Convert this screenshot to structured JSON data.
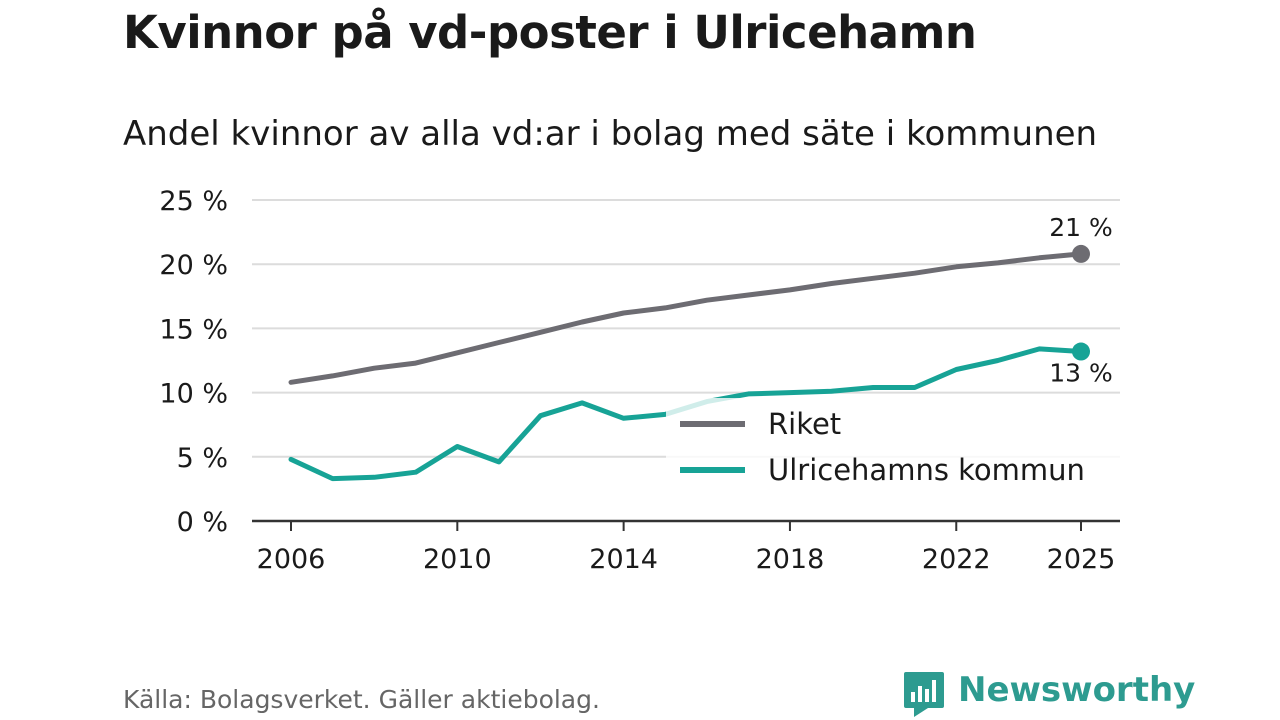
{
  "chart_data": {
    "type": "line",
    "title": "Kvinnor på vd-poster i Ulricehamn",
    "subtitle": "Andel kvinnor av alla vd:ar i bolag med säte i kommunen",
    "ylim": [
      0,
      25
    ],
    "y_ticks": [
      0,
      5,
      10,
      15,
      20,
      25
    ],
    "y_tick_labels": [
      "0 %",
      "5 %",
      "10 %",
      "15 %",
      "20 %",
      "25 %"
    ],
    "x_ticks": [
      2006,
      2010,
      2014,
      2018,
      2022,
      2025
    ],
    "x_tick_labels": [
      "2006",
      "2010",
      "2014",
      "2018",
      "2022",
      "2025"
    ],
    "xlim": [
      2006,
      2025
    ],
    "grid": true,
    "legend_position": "lower-right",
    "series": [
      {
        "name": "Riket",
        "color": "#6d6c72",
        "x": [
          2006,
          2007,
          2008,
          2009,
          2010,
          2011,
          2012,
          2013,
          2014,
          2015,
          2016,
          2017,
          2018,
          2019,
          2020,
          2021,
          2022,
          2023,
          2024,
          2025
        ],
        "values": [
          10.8,
          11.3,
          11.9,
          12.3,
          13.1,
          13.9,
          14.7,
          15.5,
          16.2,
          16.6,
          17.2,
          17.6,
          18.0,
          18.5,
          18.9,
          19.3,
          19.8,
          20.1,
          20.5,
          20.8
        ],
        "end_label": "21 %"
      },
      {
        "name": "Ulricehamns kommun",
        "color": "#17a396",
        "x": [
          2006,
          2007,
          2008,
          2009,
          2010,
          2011,
          2012,
          2013,
          2014,
          2015,
          2016,
          2017,
          2018,
          2019,
          2020,
          2021,
          2022,
          2023,
          2024,
          2025
        ],
        "values": [
          4.8,
          3.3,
          3.4,
          3.8,
          5.8,
          4.6,
          8.2,
          9.2,
          8.0,
          8.3,
          9.3,
          9.9,
          10.0,
          10.1,
          10.4,
          10.4,
          11.8,
          12.5,
          13.4,
          13.2
        ],
        "end_label": "13 %"
      }
    ]
  },
  "footer": {
    "source": "Källa: Bolagsverket. Gäller aktiebolag.",
    "brand": "Newsworthy",
    "brand_color": "#2d9b90"
  }
}
